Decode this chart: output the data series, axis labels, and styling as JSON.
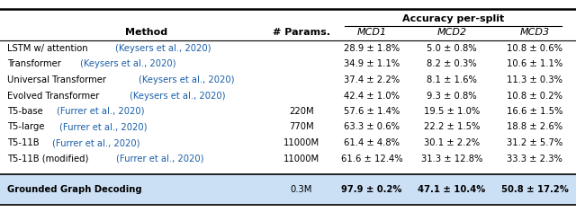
{
  "col_headers": [
    "Method",
    "# Params.",
    "MCD1",
    "MCD2",
    "MCD3"
  ],
  "col_header_top": "Accuracy per-split",
  "rows": [
    [
      "LSTM w/ attention ",
      "(Keysers et al., 2020)",
      "",
      "28.9 ± 1.8%",
      "5.0 ± 0.8%",
      "10.8 ± 0.6%"
    ],
    [
      "Transformer ",
      "(Keysers et al., 2020)",
      "",
      "34.9 ± 1.1%",
      "8.2 ± 0.3%",
      "10.6 ± 1.1%"
    ],
    [
      "Universal Transformer ",
      "(Keysers et al., 2020)",
      "",
      "37.4 ± 2.2%",
      "8.1 ± 1.6%",
      "11.3 ± 0.3%"
    ],
    [
      "Evolved Transformer ",
      "(Keysers et al., 2020)",
      "",
      "42.4 ± 1.0%",
      "9.3 ± 0.8%",
      "10.8 ± 0.2%"
    ],
    [
      "T5-base ",
      "(Furrer et al., 2020)",
      "220M",
      "57.6 ± 1.4%",
      "19.5 ± 1.0%",
      "16.6 ± 1.5%"
    ],
    [
      "T5-large ",
      "(Furrer et al., 2020)",
      "770M",
      "63.3 ± 0.6%",
      "22.2 ± 1.5%",
      "18.8 ± 2.6%"
    ],
    [
      "T5-11B ",
      "(Furrer et al., 2020)",
      "11000M",
      "61.4 ± 4.8%",
      "30.1 ± 2.2%",
      "31.2 ± 5.7%"
    ],
    [
      "T5-11B (modified) ",
      "(Furrer et al., 2020)",
      "11000M",
      "61.6 ± 12.4%",
      "31.3 ± 12.8%",
      "33.3 ± 2.3%"
    ]
  ],
  "highlight_row": [
    "Grounded Graph Decoding",
    "0.3M",
    "97.9 ± 0.2%",
    "47.1 ± 10.4%",
    "50.8 ± 17.2%"
  ],
  "highlight_bg": "#cce0f5",
  "citation_color": "#1a5fa8",
  "text_color": "#000000",
  "bg_color": "#ffffff",
  "table_font_size": 7.2,
  "header_font_size": 8.0
}
